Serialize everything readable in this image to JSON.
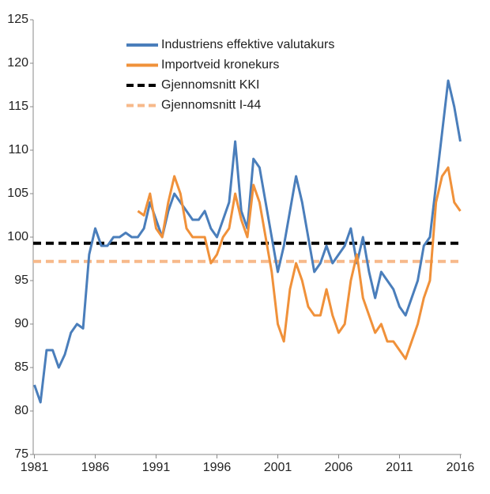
{
  "chart_data": {
    "type": "line",
    "xlim": [
      1980.9,
      2016.1
    ],
    "xticks": [
      1981,
      1986,
      1991,
      1996,
      2001,
      2006,
      2011,
      2016
    ],
    "ylim": [
      75,
      125
    ],
    "yticks": [
      75,
      80,
      85,
      90,
      95,
      100,
      105,
      110,
      115,
      120,
      125
    ],
    "series": [
      {
        "name": "Industriens effektive valutakurs",
        "color": "#4a7ebb",
        "x": [
          1981,
          1981.5,
          1982,
          1982.5,
          1983,
          1983.5,
          1984,
          1984.5,
          1985,
          1985.5,
          1986,
          1986.5,
          1987,
          1987.5,
          1988,
          1988.5,
          1989,
          1989.5,
          1990,
          1990.5,
          1991,
          1991.5,
          1992,
          1992.5,
          1993,
          1993.5,
          1994,
          1994.5,
          1995,
          1995.5,
          1996,
          1996.5,
          1997,
          1997.5,
          1998,
          1998.5,
          1999,
          1999.5,
          2000,
          2000.5,
          2001,
          2001.5,
          2002,
          2002.5,
          2003,
          2003.5,
          2004,
          2004.5,
          2005,
          2005.5,
          2006,
          2006.5,
          2007,
          2007.5,
          2008,
          2008.5,
          2009,
          2009.5,
          2010,
          2010.5,
          2011,
          2011.5,
          2012,
          2012.5,
          2013,
          2013.5,
          2014,
          2014.5,
          2015,
          2015.5,
          2016
        ],
        "values": [
          83,
          81,
          87,
          87,
          85,
          86.5,
          89,
          90,
          89.5,
          98,
          101,
          99,
          99,
          100,
          100,
          100.5,
          100,
          100,
          101,
          104,
          102,
          100,
          103,
          105,
          104,
          103,
          102,
          102,
          103,
          101,
          100,
          102,
          104,
          111,
          103,
          101,
          109,
          108,
          104,
          100,
          96,
          99,
          103,
          107,
          104,
          100,
          96,
          97,
          99,
          97,
          98,
          99,
          101,
          97,
          100,
          96,
          93,
          96,
          95,
          94,
          92,
          91,
          93,
          95,
          99,
          100,
          106,
          112,
          118,
          115,
          111
        ]
      },
      {
        "name": "Importveid kronekurs",
        "color": "#f0913a",
        "x": [
          1989.5,
          1990,
          1990.5,
          1991,
          1991.5,
          1992,
          1992.5,
          1993,
          1993.5,
          1994,
          1994.5,
          1995,
          1995.5,
          1996,
          1996.5,
          1997,
          1997.5,
          1998,
          1998.5,
          1999,
          1999.5,
          2000,
          2000.5,
          2001,
          2001.5,
          2002,
          2002.5,
          2003,
          2003.5,
          2004,
          2004.5,
          2005,
          2005.5,
          2006,
          2006.5,
          2007,
          2007.5,
          2008,
          2008.5,
          2009,
          2009.5,
          2010,
          2010.5,
          2011,
          2011.5,
          2012,
          2012.5,
          2013,
          2013.5,
          2014,
          2014.5,
          2015,
          2015.5,
          2016
        ],
        "values": [
          103,
          102.5,
          105,
          101,
          100,
          104,
          107,
          105,
          101,
          100,
          100,
          100,
          97,
          98,
          100,
          101,
          105,
          102,
          100,
          106,
          104,
          100,
          96,
          90,
          88,
          94,
          97,
          95,
          92,
          91,
          91,
          94,
          91,
          89,
          90,
          95,
          98,
          93,
          91,
          89,
          90,
          88,
          88,
          87,
          86,
          88,
          90,
          93,
          95,
          104,
          107,
          108,
          104,
          103
        ]
      }
    ],
    "reference_lines": [
      {
        "name": "Gjennomsnitt KKI",
        "color": "#000000",
        "value": 99.3
      },
      {
        "name": "Gjennomsnitt I-44",
        "color": "#f7b98a",
        "value": 97.2
      }
    ]
  }
}
